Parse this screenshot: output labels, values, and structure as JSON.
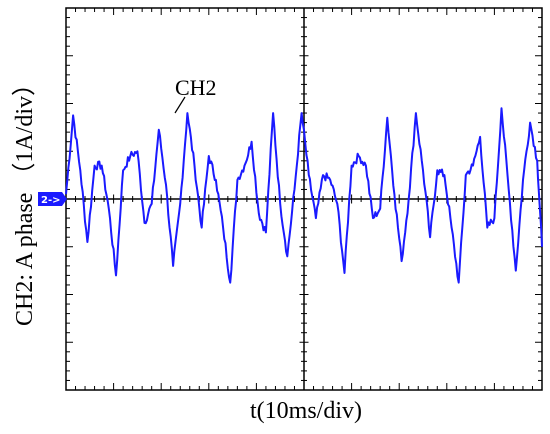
{
  "chart_data": {
    "type": "line",
    "ylabel": "CH2:  A phase （1A/div）",
    "xlabel": "t(10ms/div)",
    "grid": true,
    "x_divisions": 10,
    "y_divisions": 8,
    "xlim": [
      0,
      100
    ],
    "ylim": [
      -4,
      4
    ],
    "x_unit": "ms",
    "y_unit": "A",
    "series": [
      {
        "name": "CH2",
        "color": "#1a1aff",
        "x": [
          0,
          1.5,
          3,
          4.5,
          6,
          7.5,
          9,
          10.5,
          12,
          13.5,
          15,
          16.5,
          18,
          19.5,
          21,
          22.5,
          24,
          25.5,
          27,
          28.5,
          30,
          31.5,
          33,
          34.5,
          36,
          37.5,
          39,
          40.5,
          42,
          43.5,
          45,
          46.5,
          48,
          49.5,
          51,
          52.5,
          54,
          55.5,
          57,
          58.5,
          60,
          61.5,
          63,
          64.5,
          66,
          67.5,
          69,
          70.5,
          72,
          73.5,
          75,
          76.5,
          78,
          79.5,
          81,
          82.5,
          84,
          85.5,
          87,
          88.5,
          90,
          91.5,
          93,
          94.5,
          96,
          97.5,
          99,
          100
        ],
        "y": [
          0.1,
          1.75,
          0.6,
          -0.9,
          0.7,
          0.7,
          -0.2,
          -1.6,
          0.6,
          0.9,
          1.0,
          -0.5,
          -0.1,
          1.45,
          0.3,
          -1.4,
          -0.1,
          1.8,
          0.7,
          -0.6,
          0.9,
          0.4,
          -0.6,
          -1.75,
          0.4,
          0.7,
          1.2,
          -0.3,
          -0.7,
          1.8,
          -0.1,
          -1.2,
          0.2,
          1.8,
          0.5,
          -0.4,
          0.5,
          0.4,
          -0.1,
          -1.55,
          0.7,
          0.9,
          0.7,
          -0.4,
          -0.2,
          1.7,
          0.1,
          -1.3,
          0.0,
          1.8,
          0.6,
          -0.8,
          0.6,
          0.5,
          -0.6,
          -1.75,
          0.5,
          0.7,
          1.3,
          -0.6,
          -0.4,
          1.9,
          0.2,
          -1.5,
          0.4,
          1.6,
          0.8,
          -1.0
        ]
      }
    ],
    "annotations": [
      {
        "text": "CH2"
      }
    ],
    "marker": {
      "text": "2->",
      "color": "#1a1aff"
    }
  }
}
